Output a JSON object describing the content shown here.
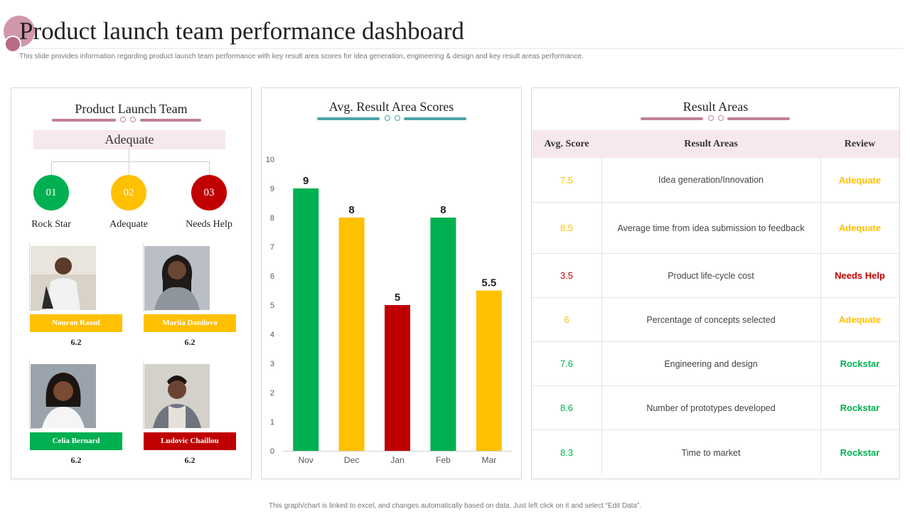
{
  "header": {
    "title": "Product launch team performance dashboard",
    "subtitle": "This slide provides information regarding product launch team performance with key result area scores for idea generation, engineering & design and key result areas performance."
  },
  "colors": {
    "green": "#00b050",
    "yellow": "#ffc000",
    "red": "#c00000",
    "pink_bg": "#f7e8ec",
    "mauve": "#c0809a",
    "teal": "#4aa3a8"
  },
  "team_panel": {
    "title": "Product Launch Team",
    "rating": "Adequate",
    "categories": [
      {
        "number": "01",
        "label": "Rock Star",
        "color": "#00b050"
      },
      {
        "number": "02",
        "label": "Adequate",
        "color": "#ffc000"
      },
      {
        "number": "03",
        "label": "Needs Help",
        "color": "#c00000"
      }
    ],
    "members": [
      {
        "name": "Nouran Raouf",
        "score": "6.2",
        "tag_color": "#ffc000"
      },
      {
        "name": "Mariia Danilova",
        "score": "6.2",
        "tag_color": "#ffc000"
      },
      {
        "name": "Celia Bernard",
        "score": "6.2",
        "tag_color": "#00b050"
      },
      {
        "name": "Ludovic  Chaillou",
        "score": "6.2",
        "tag_color": "#c00000"
      }
    ]
  },
  "chart_panel": {
    "title": "Avg. Result Area Scores"
  },
  "chart_data": {
    "type": "bar",
    "title": "Avg. Result Area Scores",
    "categories": [
      "Nov",
      "Dec",
      "Jan",
      "Feb",
      "Mar"
    ],
    "values": [
      9,
      8,
      5,
      8,
      5.5
    ],
    "data_labels": [
      "9",
      "8",
      "5",
      "8",
      "5.5"
    ],
    "bar_colors": [
      "#00b050",
      "#ffc000",
      "#c00000",
      "#00b050",
      "#ffc000"
    ],
    "ylim": [
      0,
      10
    ],
    "yticks": [
      "0",
      "1",
      "2",
      "3",
      "4",
      "5",
      "6",
      "7",
      "8",
      "9",
      "10"
    ],
    "grid": false,
    "legend": "none"
  },
  "results_panel": {
    "title": "Result Areas",
    "columns": [
      "Avg. Score",
      "Result Areas",
      "Review"
    ],
    "rows": [
      {
        "score": "7.5",
        "area": "Idea generation/Innovation",
        "review": "Adequate",
        "color": "#ffc000"
      },
      {
        "score": "8.5",
        "area": "Average  time from idea submission to feedback",
        "review": "Adequate",
        "color": "#ffc000"
      },
      {
        "score": "3.5",
        "area": "Product life-cycle cost",
        "review": "Needs Help",
        "color": "#c00000"
      },
      {
        "score": "6",
        "area": "Percentage of concepts selected",
        "review": "Adequate",
        "color": "#ffc000"
      },
      {
        "score": "7.6",
        "area": "Engineering  and design",
        "review": "Rockstar",
        "color": "#00b050"
      },
      {
        "score": "8.6",
        "area": "Number  of prototypes developed",
        "review": "Rockstar",
        "color": "#00b050"
      },
      {
        "score": "8.3",
        "area": "Time to market",
        "review": "Rockstar",
        "color": "#00b050"
      }
    ]
  },
  "footer": {
    "note": "This graph/chart is linked to excel, and changes automatically based on data. Just left click on it and select “Edit Data”."
  }
}
